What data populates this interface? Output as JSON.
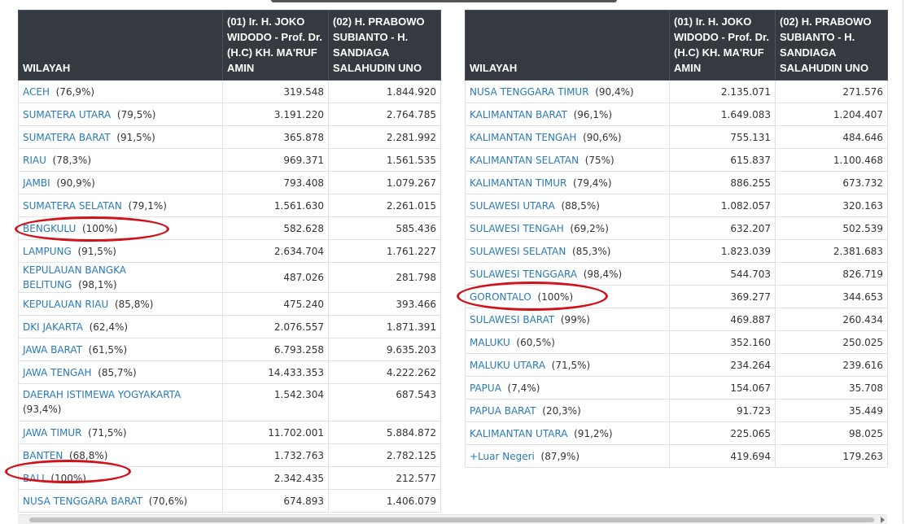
{
  "headers": {
    "wilayah": "WILAYAH",
    "candidate1": "(01) Ir. H. JOKO WIDODO - Prof. Dr. (H.C) KH. MA'RUF AMIN",
    "candidate2": "(02) H. PRABOWO SUBIANTO - H. SANDIAGA SALAHUDIN UNO"
  },
  "left_rows": [
    {
      "region": "ACEH",
      "pct": "(76,9%)",
      "c1": "319.548",
      "c2": "1.844.920"
    },
    {
      "region": "SUMATERA UTARA",
      "pct": "(79,5%)",
      "c1": "3.191.220",
      "c2": "2.764.785"
    },
    {
      "region": "SUMATERA BARAT",
      "pct": "(91,5%)",
      "c1": "365.878",
      "c2": "2.281.992"
    },
    {
      "region": "RIAU",
      "pct": "(78,3%)",
      "c1": "969.371",
      "c2": "1.561.535"
    },
    {
      "region": "JAMBI",
      "pct": "(90,9%)",
      "c1": "793.408",
      "c2": "1.079.267"
    },
    {
      "region": "SUMATERA SELATAN",
      "pct": "(79,1%)",
      "c1": "1.561.630",
      "c2": "2.261.015"
    },
    {
      "region": "BENGKULU",
      "pct": "(100%)",
      "c1": "582.628",
      "c2": "585.436",
      "circled": true
    },
    {
      "region": "LAMPUNG",
      "pct": "(91,5%)",
      "c1": "2.634.704",
      "c2": "1.761.227"
    },
    {
      "region": "KEPULAUAN BANGKA BELITUNG",
      "pct": "(98,1%)",
      "c1": "487.026",
      "c2": "281.798"
    },
    {
      "region": "KEPULAUAN RIAU",
      "pct": "(85,8%)",
      "c1": "475.240",
      "c2": "393.466"
    },
    {
      "region": "DKI JAKARTA",
      "pct": "(62,4%)",
      "c1": "2.076.557",
      "c2": "1.871.391"
    },
    {
      "region": "JAWA BARAT",
      "pct": "(61,5%)",
      "c1": "6.793.258",
      "c2": "9.635.203"
    },
    {
      "region": "JAWA TENGAH",
      "pct": "(85,7%)",
      "c1": "14.433.353",
      "c2": "4.222.262"
    },
    {
      "region": "DAERAH ISTIMEWA YOGYAKARTA",
      "pct": "(93,4%)",
      "c1": "1.542.304",
      "c2": "687.543",
      "tall": true
    },
    {
      "region": "JAWA TIMUR",
      "pct": "(71,5%)",
      "c1": "11.702.001",
      "c2": "5.884.872"
    },
    {
      "region": "BANTEN",
      "pct": "(68,8%)",
      "c1": "1.732.763",
      "c2": "2.782.125"
    },
    {
      "region": "BALI",
      "pct": "(100%)",
      "c1": "2.342.435",
      "c2": "212.577",
      "circled": true
    },
    {
      "region": "NUSA TENGGARA BARAT",
      "pct": "(70,6%)",
      "c1": "674.893",
      "c2": "1.406.079"
    }
  ],
  "right_rows": [
    {
      "region": "NUSA TENGGARA TIMUR",
      "pct": "(90,4%)",
      "c1": "2.135.071",
      "c2": "271.576"
    },
    {
      "region": "KALIMANTAN BARAT",
      "pct": "(96,1%)",
      "c1": "1.649.083",
      "c2": "1.204.407"
    },
    {
      "region": "KALIMANTAN TENGAH",
      "pct": "(90,6%)",
      "c1": "755.131",
      "c2": "484.646"
    },
    {
      "region": "KALIMANTAN SELATAN",
      "pct": "(75%)",
      "c1": "615.837",
      "c2": "1.100.468"
    },
    {
      "region": "KALIMANTAN TIMUR",
      "pct": "(79,4%)",
      "c1": "886.255",
      "c2": "673.732"
    },
    {
      "region": "SULAWESI UTARA",
      "pct": "(88,5%)",
      "c1": "1.082.057",
      "c2": "320.163"
    },
    {
      "region": "SULAWESI TENGAH",
      "pct": "(69,2%)",
      "c1": "632.207",
      "c2": "502.539"
    },
    {
      "region": "SULAWESI SELATAN",
      "pct": "(85,3%)",
      "c1": "1.823.039",
      "c2": "2.381.683"
    },
    {
      "region": "SULAWESI TENGGARA",
      "pct": "(98,4%)",
      "c1": "544.703",
      "c2": "826.719"
    },
    {
      "region": "GORONTALO",
      "pct": "(100%)",
      "c1": "369.277",
      "c2": "344.653",
      "circled": true
    },
    {
      "region": "SULAWESI BARAT",
      "pct": "(99%)",
      "c1": "469.887",
      "c2": "260.434"
    },
    {
      "region": "MALUKU",
      "pct": "(60,5%)",
      "c1": "352.160",
      "c2": "250.025"
    },
    {
      "region": "MALUKU UTARA",
      "pct": "(71,5%)",
      "c1": "234.264",
      "c2": "239.616"
    },
    {
      "region": "PAPUA",
      "pct": "(7,4%)",
      "c1": "154.067",
      "c2": "35.708"
    },
    {
      "region": "PAPUA BARAT",
      "pct": "(20,3%)",
      "c1": "91.723",
      "c2": "35.449"
    },
    {
      "region": "KALIMANTAN UTARA",
      "pct": "(91,2%)",
      "c1": "225.065",
      "c2": "98.025"
    },
    {
      "region": "+Luar Negeri",
      "pct": "(87,9%)",
      "c1": "419.694",
      "c2": "179.263"
    }
  ],
  "colors": {
    "header_bg": "#343a40",
    "link": "#2a7ab8",
    "highlight_circle": "#d0121b"
  }
}
